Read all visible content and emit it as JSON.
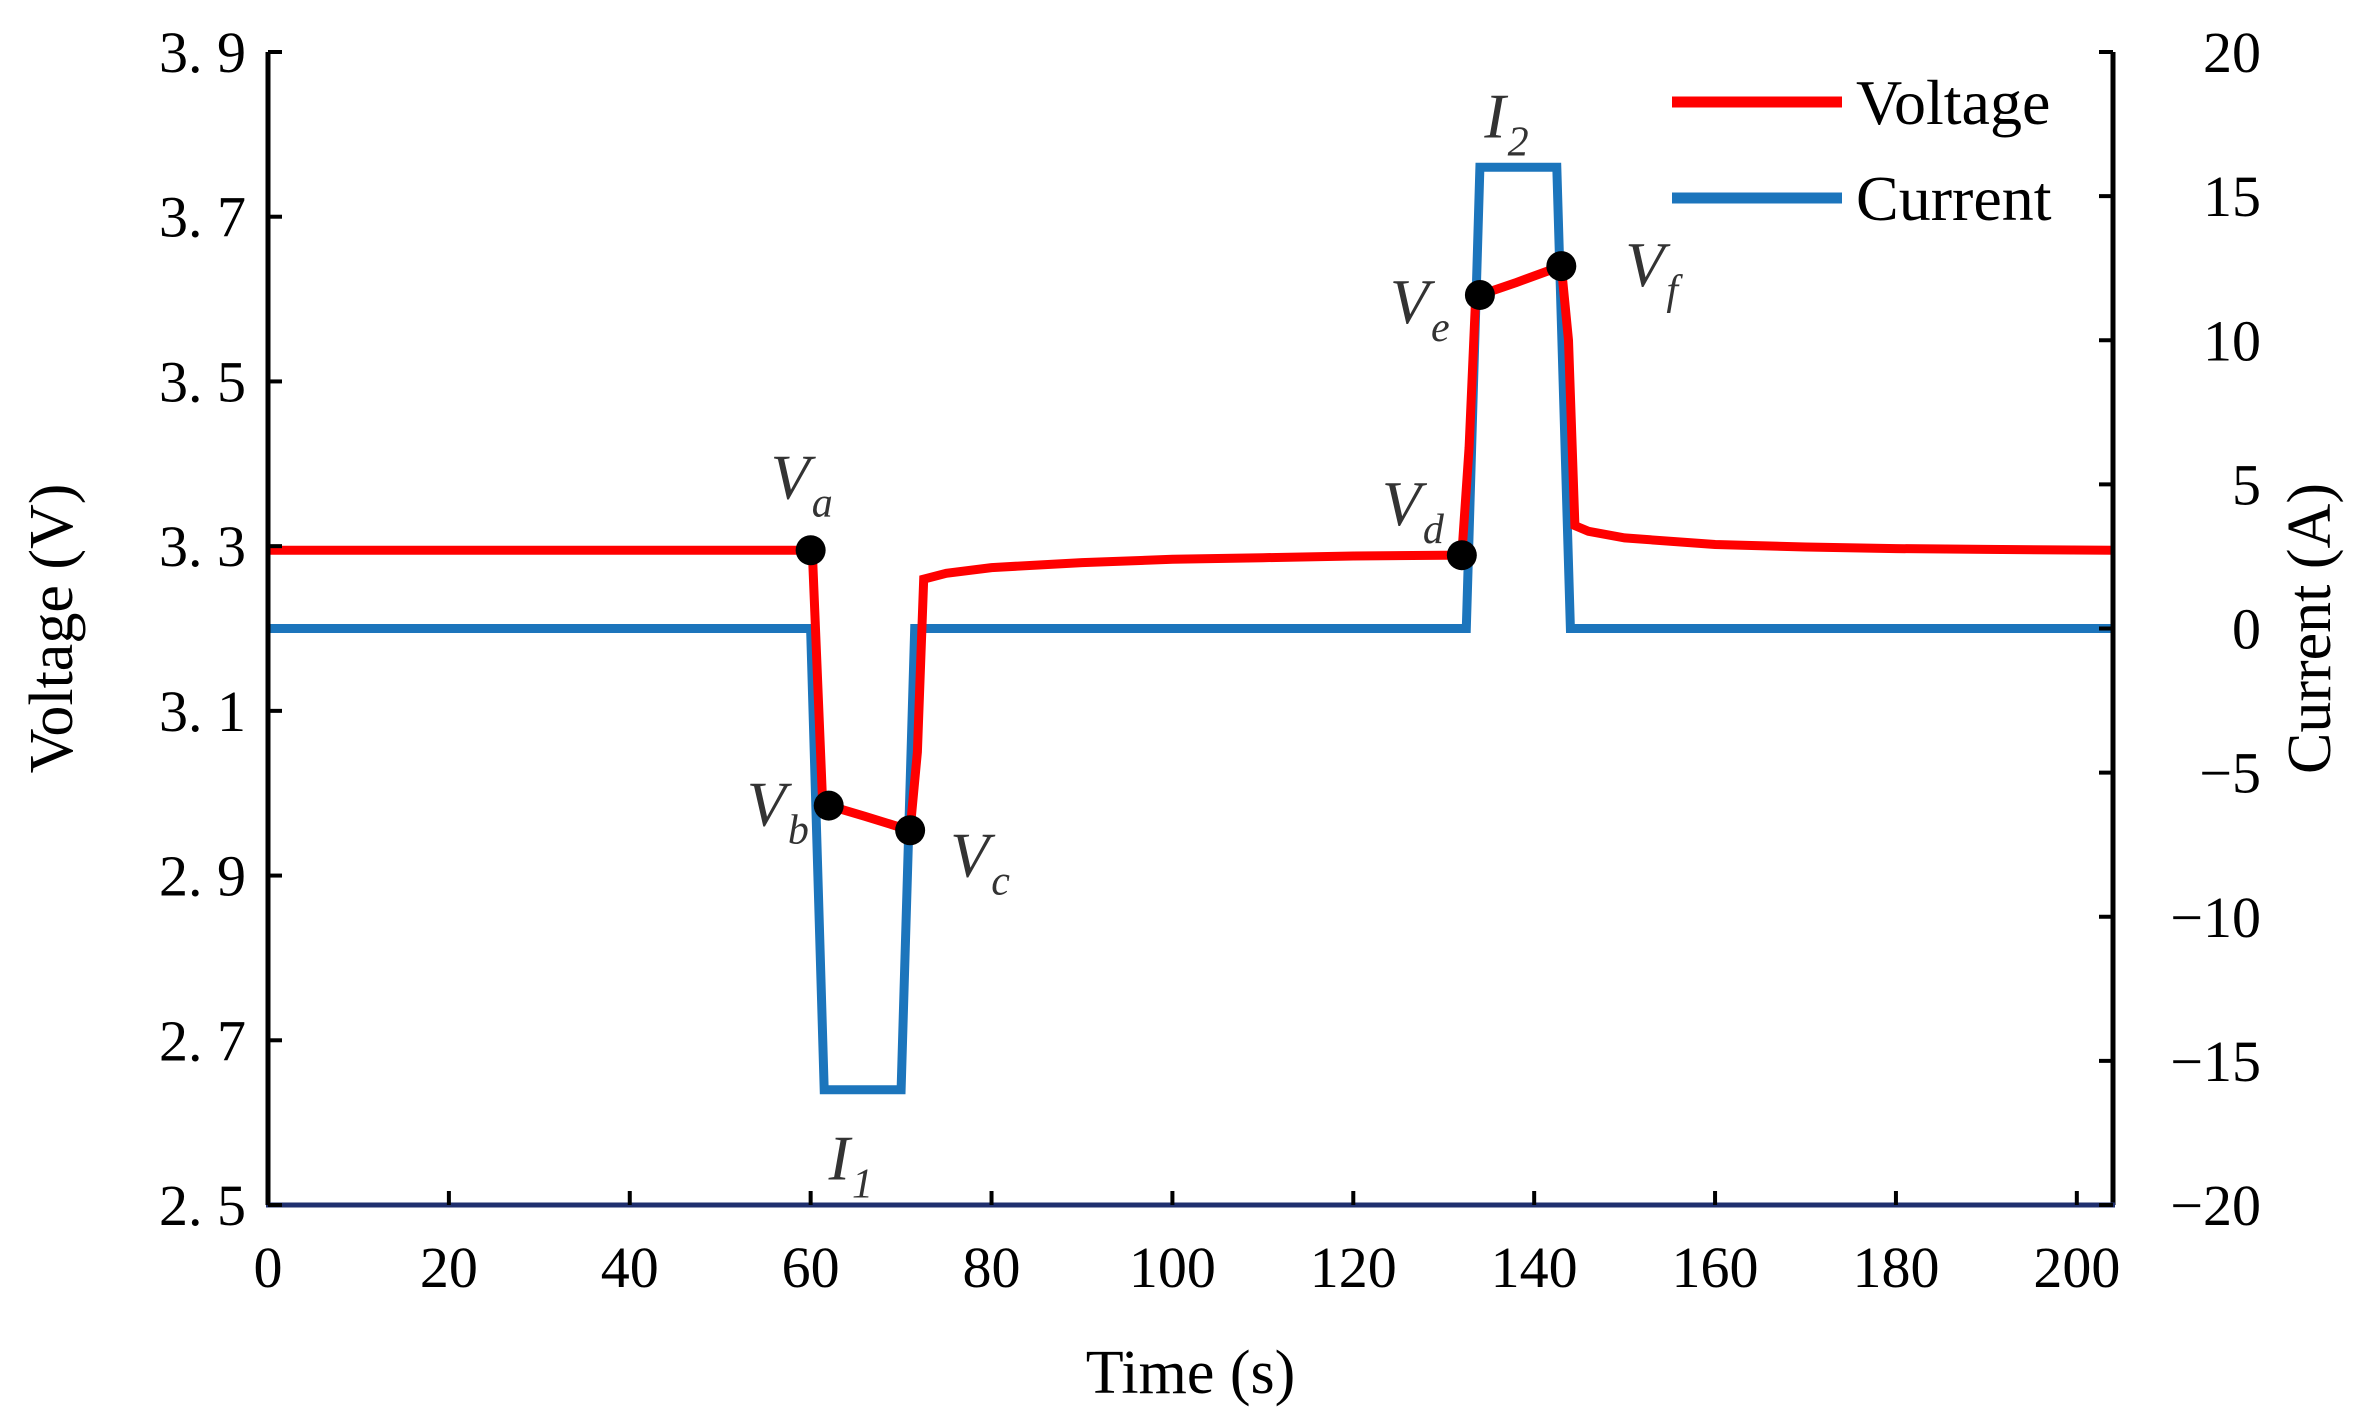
{
  "chart_data": {
    "type": "line",
    "xlabel": "Time (s)",
    "ylabel_left": "Voltage (V)",
    "ylabel_right": "Current (A)",
    "xlim": [
      0,
      204
    ],
    "xticks": [
      0,
      20,
      40,
      60,
      80,
      100,
      120,
      140,
      160,
      180,
      200
    ],
    "ylim_left": [
      2.5,
      3.9
    ],
    "yticks_left": [
      2.5,
      2.7,
      2.9,
      3.1,
      3.3,
      3.5,
      3.7,
      3.9
    ],
    "ytick_labels_left": [
      "2. 5",
      "2. 7",
      "2. 9",
      "3. 1",
      "3. 3",
      "3. 5",
      "3. 7",
      "3. 9"
    ],
    "ylim_right": [
      -20,
      20
    ],
    "yticks_right": [
      -20,
      -15,
      -10,
      -5,
      0,
      5,
      10,
      15,
      20
    ],
    "ytick_labels_right": [
      "−20",
      "−15",
      "−10",
      "−5",
      "0",
      "5",
      "10",
      "15",
      "20"
    ],
    "grid": false,
    "legend_position": "top-right",
    "series": [
      {
        "name": "Voltage",
        "axis": "left",
        "color": "#ff0000",
        "x": [
          0,
          30,
          59.5,
          60.2,
          61.3,
          62,
          66,
          71,
          71.8,
          72.5,
          75,
          80,
          90,
          100,
          110,
          120,
          130,
          132,
          132.8,
          133.5,
          134,
          138,
          143,
          143.8,
          144.5,
          146,
          150,
          160,
          170,
          180,
          190,
          204
        ],
        "y": [
          3.295,
          3.295,
          3.295,
          3.288,
          2.995,
          2.985,
          2.972,
          2.955,
          3.05,
          3.26,
          3.267,
          3.274,
          3.28,
          3.284,
          3.286,
          3.288,
          3.289,
          3.289,
          3.42,
          3.595,
          3.605,
          3.62,
          3.64,
          3.55,
          3.325,
          3.318,
          3.31,
          3.302,
          3.299,
          3.297,
          3.296,
          3.295
        ]
      },
      {
        "name": "Current",
        "axis": "right",
        "color": "#1c75bc",
        "x": [
          0,
          60,
          61.5,
          70,
          71.5,
          132.5,
          134,
          142.5,
          144,
          204
        ],
        "y": [
          0,
          0,
          -16,
          -16,
          0,
          0,
          16,
          16,
          0,
          0
        ]
      }
    ],
    "markers": [
      {
        "x": 60,
        "y": 3.295,
        "label": "V",
        "sub": "a"
      },
      {
        "x": 62,
        "y": 2.985,
        "label": "V",
        "sub": "b"
      },
      {
        "x": 71,
        "y": 2.955,
        "label": "V",
        "sub": "c"
      },
      {
        "x": 132,
        "y": 3.289,
        "label": "V",
        "sub": "d"
      },
      {
        "x": 134,
        "y": 3.605,
        "label": "V",
        "sub": "e"
      },
      {
        "x": 143,
        "y": 3.64,
        "label": "V",
        "sub": "f"
      }
    ],
    "current_annotations": [
      {
        "label": "I",
        "sub": "1"
      },
      {
        "label": "I",
        "sub": "2"
      }
    ]
  }
}
